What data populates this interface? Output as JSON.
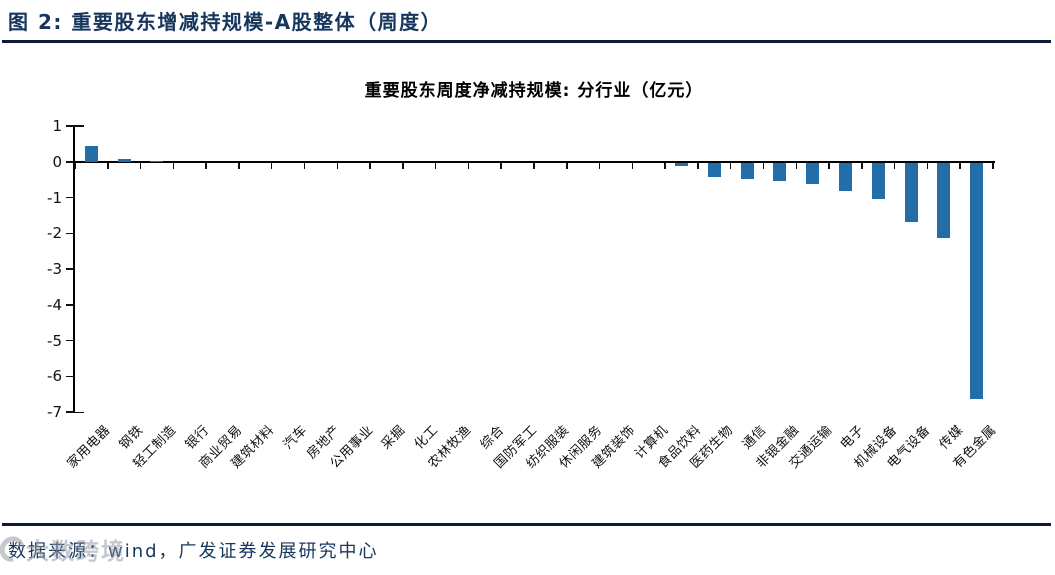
{
  "header": {
    "title": "图 2: 重要股东增减持规模-A股整体（周度）"
  },
  "chart_data": {
    "type": "bar",
    "title": "重要股东周度净减持规模: 分行业（亿元）",
    "categories": [
      "家用电器",
      "钢铁",
      "轻工制造",
      "银行",
      "商业贸易",
      "建筑材料",
      "汽车",
      "房地产",
      "公用事业",
      "采掘",
      "化工",
      "农林牧渔",
      "综合",
      "国防军工",
      "纺织服装",
      "休闲服务",
      "建筑装饰",
      "计算机",
      "食品饮料",
      "医药生物",
      "通信",
      "非银金融",
      "交通运输",
      "电子",
      "机械设备",
      "电气设备",
      "传媒",
      "有色金属"
    ],
    "values": [
      0.45,
      0.07,
      0.03,
      0,
      0,
      0,
      0,
      0,
      0,
      0,
      0,
      0,
      0,
      0,
      0,
      0,
      0,
      0,
      -0.1,
      -0.4,
      -0.45,
      -0.5,
      -0.6,
      -0.8,
      -1.0,
      -1.65,
      -2.1,
      -6.6
    ],
    "ylim": [
      -7,
      1
    ],
    "yticks": [
      1,
      0,
      -1,
      -2,
      -3,
      -4,
      -5,
      -6,
      -7
    ],
    "xlabel": "",
    "ylabel": "",
    "grid": false,
    "legend": null,
    "bar_color": "#216EA8",
    "axis_color": "#000000"
  },
  "footer": {
    "source": "数据来源：wind，广发证券发展研究中心"
  },
  "watermark": {
    "text": "大数跨境",
    "logo": "swirl-logo-icon"
  }
}
